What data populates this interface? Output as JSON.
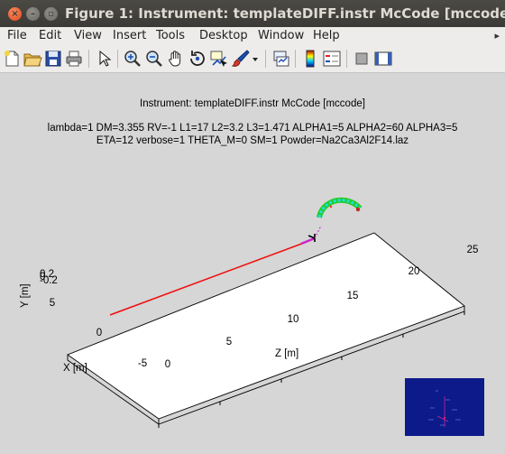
{
  "window": {
    "title": "Figure 1: Instrument: templateDIFF.instr McCode [mccode]"
  },
  "menu": {
    "items": [
      "File",
      "Edit",
      "View",
      "Insert",
      "Tools",
      "Desktop",
      "Window",
      "Help"
    ],
    "overflow_icon": "chevron-right-icon"
  },
  "toolbar": {
    "icons": [
      "new-figure-icon",
      "open-file-icon",
      "save-icon",
      "print-icon",
      "edit-plot-arrow-icon",
      "zoom-in-icon",
      "zoom-out-icon",
      "pan-hand-icon",
      "rotate-3d-icon",
      "data-cursor-icon",
      "brush-icon",
      "brush-dropdown-icon",
      "link-plot-icon",
      "colorbar-icon",
      "legend-icon",
      "hide-plot-tools-icon",
      "show-plot-tools-icon"
    ]
  },
  "plot": {
    "title_line1": "Instrument: templateDIFF.instr McCode [mccode]",
    "title_line2": "lambda=1 DM=3.355 RV=-1 L1=17 L2=3.2 L3=1.471 ALPHA1=5 ALPHA2=60 ALPHA3=5",
    "title_line3": "ETA=12 verbose=1 THETA_M=0 SM=1 Powder=Na2Ca3Al2F14.laz",
    "xlabel": "X [m]",
    "ylabel": "Y [m]",
    "zlabel": "Z [m]",
    "x_ticks": [
      "-5",
      "0",
      "5"
    ],
    "y_ticks": [
      "-0.2",
      "0",
      "0.2"
    ],
    "z_ticks": [
      "0",
      "5",
      "10",
      "15",
      "20",
      "25"
    ],
    "colors": {
      "beam": "#ee1111",
      "guide": "#cc22cc",
      "detector": "#22dddd",
      "detector_edge": "#22cc22",
      "inset_bg": "#0d1a8a"
    }
  },
  "chart_data": {
    "type": "line",
    "title": "Instrument: templateDIFF.instr McCode [mccode]",
    "xlabel": "X [m]",
    "ylabel": "Y [m]",
    "zlabel": "Z [m]",
    "xlim": [
      -5,
      5
    ],
    "ylim": [
      -0.2,
      0.2
    ],
    "zlim": [
      0,
      25
    ],
    "grid": false,
    "series": [
      {
        "z": [
          0,
          18.6
        ],
        "x": [
          0,
          0
        ],
        "y": [
          0,
          0
        ]
      }
    ]
  }
}
